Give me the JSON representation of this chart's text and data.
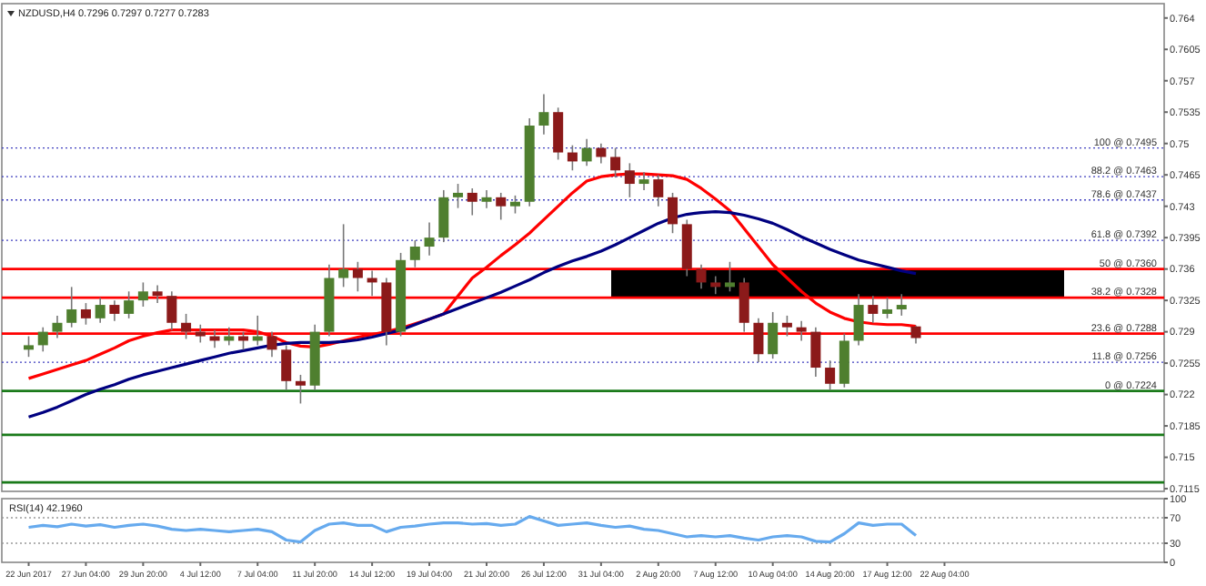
{
  "chart_data": [
    {
      "type": "candlestick",
      "title": "NZDUSD,H4 0.7296 0.7297 0.7277 0.7283",
      "tick_labels": "y",
      "categories": [
        null,
        null,
        null,
        null,
        null,
        null,
        null,
        null,
        null,
        null,
        null,
        null,
        null,
        null,
        null,
        null,
        null,
        null,
        null,
        null,
        null,
        null,
        null,
        null,
        null,
        null,
        null,
        null,
        null,
        null,
        null,
        null,
        null,
        null,
        null,
        null,
        null,
        null,
        null,
        null,
        null,
        null,
        null,
        null,
        null,
        null,
        null,
        null,
        null,
        null,
        null,
        null,
        null,
        null,
        null,
        null,
        null,
        null,
        null,
        null,
        null,
        null,
        null,
        null,
        null,
        null,
        null,
        null,
        null,
        null,
        null,
        null,
        null,
        null,
        null,
        null,
        null,
        null,
        null,
        null
      ],
      "ohlc": [
        [
          0.727,
          0.7285,
          0.7262,
          0.7275
        ],
        [
          0.7275,
          0.7295,
          0.7268,
          0.729
        ],
        [
          0.729,
          0.7308,
          0.7283,
          0.73
        ],
        [
          0.73,
          0.734,
          0.7295,
          0.7315
        ],
        [
          0.7315,
          0.7322,
          0.7298,
          0.7305
        ],
        [
          0.7305,
          0.7328,
          0.73,
          0.732
        ],
        [
          0.732,
          0.7325,
          0.7302,
          0.731
        ],
        [
          0.731,
          0.7335,
          0.7305,
          0.7325
        ],
        [
          0.7325,
          0.7345,
          0.7318,
          0.7335
        ],
        [
          0.7335,
          0.7342,
          0.7322,
          0.733
        ],
        [
          0.733,
          0.7335,
          0.7292,
          0.73
        ],
        [
          0.73,
          0.731,
          0.7282,
          0.729
        ],
        [
          0.729,
          0.7298,
          0.7278,
          0.7285
        ],
        [
          0.7285,
          0.7292,
          0.7272,
          0.728
        ],
        [
          0.728,
          0.7295,
          0.7275,
          0.7285
        ],
        [
          0.7285,
          0.729,
          0.727,
          0.728
        ],
        [
          0.728,
          0.7308,
          0.7275,
          0.7285
        ],
        [
          0.7285,
          0.729,
          0.7262,
          0.727
        ],
        [
          0.727,
          0.7275,
          0.7225,
          0.7235
        ],
        [
          0.7235,
          0.7242,
          0.721,
          0.723
        ],
        [
          0.723,
          0.7298,
          0.7225,
          0.729
        ],
        [
          0.729,
          0.7365,
          0.7285,
          0.735
        ],
        [
          0.735,
          0.741,
          0.734,
          0.736
        ],
        [
          0.736,
          0.7368,
          0.7335,
          0.735
        ],
        [
          0.735,
          0.7358,
          0.733,
          0.7345
        ],
        [
          0.7345,
          0.735,
          0.7275,
          0.729
        ],
        [
          0.729,
          0.7378,
          0.7285,
          0.737
        ],
        [
          0.737,
          0.7392,
          0.7362,
          0.7385
        ],
        [
          0.7385,
          0.7412,
          0.7375,
          0.7395
        ],
        [
          0.7395,
          0.7448,
          0.739,
          0.744
        ],
        [
          0.744,
          0.7455,
          0.7428,
          0.7445
        ],
        [
          0.7445,
          0.745,
          0.742,
          0.7435
        ],
        [
          0.7435,
          0.7448,
          0.7428,
          0.744
        ],
        [
          0.744,
          0.7445,
          0.7415,
          0.743
        ],
        [
          0.743,
          0.7442,
          0.7422,
          0.7435
        ],
        [
          0.7435,
          0.7528,
          0.743,
          0.752
        ],
        [
          0.752,
          0.7555,
          0.751,
          0.7535
        ],
        [
          0.7535,
          0.754,
          0.7482,
          0.749
        ],
        [
          0.749,
          0.7498,
          0.747,
          0.748
        ],
        [
          0.748,
          0.7505,
          0.7475,
          0.7495
        ],
        [
          0.7495,
          0.75,
          0.7478,
          0.7485
        ],
        [
          0.7485,
          0.7495,
          0.7462,
          0.747
        ],
        [
          0.747,
          0.7478,
          0.744,
          0.7455
        ],
        [
          0.7455,
          0.7468,
          0.7448,
          0.746
        ],
        [
          0.746,
          0.7465,
          0.743,
          0.744
        ],
        [
          0.744,
          0.7445,
          0.74,
          0.741
        ],
        [
          0.741,
          0.7415,
          0.7352,
          0.736
        ],
        [
          0.736,
          0.7365,
          0.7338,
          0.7345
        ],
        [
          0.7345,
          0.7352,
          0.7332,
          0.734
        ],
        [
          0.734,
          0.7368,
          0.7335,
          0.7345
        ],
        [
          0.7345,
          0.735,
          0.729,
          0.73
        ],
        [
          0.73,
          0.7305,
          0.7256,
          0.7265
        ],
        [
          0.7265,
          0.7312,
          0.726,
          0.73
        ],
        [
          0.73,
          0.7308,
          0.7285,
          0.7295
        ],
        [
          0.7295,
          0.7302,
          0.728,
          0.729
        ],
        [
          0.729,
          0.7295,
          0.724,
          0.725
        ],
        [
          0.725,
          0.7258,
          0.7225,
          0.7232
        ],
        [
          0.7232,
          0.7288,
          0.7228,
          0.728
        ],
        [
          0.728,
          0.7332,
          0.7275,
          0.732
        ],
        [
          0.732,
          0.733,
          0.73,
          0.731
        ],
        [
          0.731,
          0.7328,
          0.7305,
          0.7315
        ],
        [
          0.7315,
          0.7332,
          0.7308,
          0.732
        ],
        [
          0.7296,
          0.7297,
          0.7277,
          0.7283
        ],
        null,
        null,
        null,
        null,
        null,
        null,
        null,
        null,
        null,
        null,
        null,
        null,
        null,
        null,
        null,
        null,
        null
      ],
      "series": [
        {
          "type": "line",
          "color": "#ff0000",
          "values": [
            0.7238,
            0.7243,
            0.7248,
            0.7253,
            0.7258,
            0.7265,
            0.7272,
            0.728,
            0.7285,
            0.7289,
            0.7292,
            0.7292,
            0.7292,
            0.7292,
            0.7292,
            0.7292,
            0.729,
            0.7285,
            0.7278,
            0.7274,
            0.7273,
            0.7276,
            0.728,
            0.7284,
            0.7287,
            0.729,
            0.7294,
            0.7299,
            0.7304,
            0.731,
            0.733,
            0.735,
            0.7362,
            0.7375,
            0.7387,
            0.74,
            0.7415,
            0.743,
            0.7445,
            0.7458,
            0.7463,
            0.7465,
            0.7466,
            0.7466,
            0.7465,
            0.7464,
            0.746,
            0.745,
            0.7438,
            0.7425,
            0.7405,
            0.7385,
            0.7365,
            0.735,
            0.7335,
            0.7322,
            0.7312,
            0.7305,
            0.7301,
            0.7299,
            0.7298,
            0.7298,
            0.7296,
            null,
            null,
            null,
            null,
            null,
            null,
            null,
            null,
            null,
            null,
            null,
            null,
            null,
            null,
            null,
            null,
            null
          ]
        },
        {
          "type": "line",
          "color": "#000080",
          "values": [
            0.7195,
            0.72,
            0.7206,
            0.7213,
            0.722,
            0.7226,
            0.7231,
            0.7237,
            0.7242,
            0.7246,
            0.725,
            0.7254,
            0.7258,
            0.7262,
            0.7266,
            0.7269,
            0.7272,
            0.7275,
            0.7277,
            0.7278,
            0.7278,
            0.7278,
            0.7279,
            0.7281,
            0.7284,
            0.7288,
            0.7292,
            0.7298,
            0.7304,
            0.731,
            0.7316,
            0.7322,
            0.7328,
            0.7334,
            0.7341,
            0.7348,
            0.7356,
            0.7363,
            0.7369,
            0.7374,
            0.738,
            0.7387,
            0.7395,
            0.7403,
            0.7411,
            0.7417,
            0.7421,
            0.7423,
            0.7424,
            0.7423,
            0.742,
            0.7416,
            0.7411,
            0.7404,
            0.7396,
            0.7389,
            0.7382,
            0.7376,
            0.737,
            0.7366,
            0.7362,
            0.7358,
            0.7355,
            null,
            null,
            null,
            null,
            null,
            null,
            null,
            null,
            null,
            null,
            null,
            null,
            null,
            null,
            null,
            null,
            null
          ]
        }
      ],
      "ylim": [
        0.7112,
        0.7656
      ],
      "yticks": [
        0.7115,
        0.715,
        0.7185,
        0.722,
        0.7255,
        0.729,
        0.7325,
        0.736,
        0.7395,
        0.743,
        0.7465,
        0.75,
        0.7535,
        0.757,
        0.7605,
        0.764
      ],
      "ref_lines": [
        {
          "axis": "y",
          "value": 0.7495,
          "label": "100 @ 0.7495",
          "color": "#4040c0",
          "line_style": "dotted"
        },
        {
          "axis": "y",
          "value": 0.7463,
          "label": "88.2 @ 0.7463",
          "color": "#4040c0",
          "line_style": "dotted"
        },
        {
          "axis": "y",
          "value": 0.7437,
          "label": "78.6 @ 0.7437",
          "color": "#4040c0",
          "line_style": "dotted"
        },
        {
          "axis": "y",
          "value": 0.7392,
          "label": "61.8 @ 0.7392",
          "color": "#4040c0",
          "line_style": "dotted"
        },
        {
          "axis": "y",
          "value": 0.7256,
          "label": "11.8 @ 0.7256",
          "color": "#4040c0",
          "line_style": "dotted"
        },
        {
          "axis": "y",
          "value": 0.736,
          "label": "50 @ 0.7360",
          "color": "#ff0000",
          "line_style": "solid"
        },
        {
          "axis": "y",
          "value": 0.7328,
          "label": "38.2 @ 0.7328",
          "color": "#ff0000",
          "line_style": "solid"
        },
        {
          "axis": "y",
          "value": 0.7288,
          "label": "23.6 @ 0.7288",
          "color": "#ff0000",
          "line_style": "solid"
        },
        {
          "axis": "y",
          "value": 0.7224,
          "label": "0 @ 0.7224",
          "color": "#1a7a1a",
          "line_style": "solid"
        },
        {
          "axis": "y",
          "value": 0.7175,
          "color": "#1a7a1a",
          "line_style": "solid"
        },
        {
          "axis": "y",
          "value": 0.7122,
          "color": "#1a7a1a",
          "line_style": "solid"
        }
      ]
    },
    {
      "type": "line",
      "title": "RSI(14) 42.1960",
      "categories": [
        "22 Jun 2017",
        null,
        null,
        null,
        "27 Jun 04:00",
        null,
        null,
        null,
        "29 Jun 20:00",
        null,
        null,
        null,
        "4 Jul 12:00",
        null,
        null,
        null,
        "7 Jul 04:00",
        null,
        null,
        null,
        "11 Jul 20:00",
        null,
        null,
        null,
        "14 Jul 12:00",
        null,
        null,
        null,
        "19 Jul 04:00",
        null,
        null,
        null,
        "21 Jul 20:00",
        null,
        null,
        null,
        "26 Jul 12:00",
        null,
        null,
        null,
        "31 Jul 04:00",
        null,
        null,
        null,
        "2 Aug 20:00",
        null,
        null,
        null,
        "7 Aug 12:00",
        null,
        null,
        null,
        "10 Aug 04:00",
        null,
        null,
        null,
        "14 Aug 20:00",
        null,
        null,
        null,
        "17 Aug 12:00",
        null,
        null,
        null,
        "22 Aug 04:00",
        null,
        null,
        null,
        null,
        null,
        null,
        null,
        null,
        null,
        null,
        null,
        null,
        null,
        null,
        null
      ],
      "series": [
        {
          "color": "#66aaee",
          "values": [
            55,
            58,
            56,
            60,
            57,
            59,
            55,
            58,
            60,
            57,
            52,
            50,
            52,
            50,
            48,
            50,
            52,
            48,
            35,
            32,
            50,
            60,
            62,
            58,
            58,
            48,
            55,
            57,
            60,
            62,
            62,
            60,
            61,
            58,
            60,
            72,
            65,
            58,
            60,
            62,
            58,
            55,
            57,
            52,
            50,
            45,
            40,
            42,
            40,
            42,
            38,
            35,
            40,
            42,
            40,
            33,
            32,
            45,
            62,
            58,
            60,
            60,
            42,
            null,
            null,
            null,
            null,
            null,
            null,
            null,
            null,
            null,
            null,
            null,
            null,
            null,
            null,
            null,
            null,
            null
          ]
        }
      ],
      "ylim": [
        0,
        100
      ],
      "yticks": [
        0,
        30,
        70,
        100
      ],
      "ref_lines": [
        {
          "axis": "y",
          "value": 70,
          "color": "#999999",
          "line_style": "dotted"
        },
        {
          "axis": "y",
          "value": 30,
          "color": "#999999",
          "line_style": "dotted"
        }
      ]
    }
  ]
}
